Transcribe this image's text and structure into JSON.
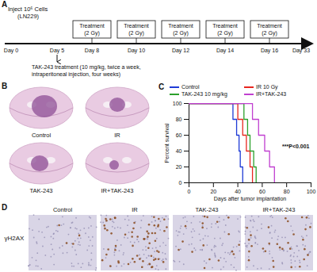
{
  "panel_labels": [
    "A",
    "B",
    "C",
    "D"
  ],
  "timeline": {
    "inject": [
      "Inject 10⁶ Cells",
      "(LN229)"
    ],
    "days": [
      "Day 0",
      "Day 5",
      "Day 8",
      "Day 10",
      "Day 12",
      "Day 14",
      "Day 16",
      "Day 33"
    ],
    "treatments": [
      [
        "Treatment",
        "(2 Gy)"
      ],
      [
        "Treatment",
        "(2 Gy)"
      ],
      [
        "Treatment",
        "(2 Gy)"
      ],
      [
        "Treatment",
        "(2 Gy)"
      ],
      [
        "Treatment",
        "(2 Gy)"
      ]
    ],
    "drug": [
      "TAK-243 treatment (10 mg/kg, twice a week,",
      "intraperitoneal injection, four weeks)"
    ]
  },
  "brain_sections": {
    "labels": [
      "Control",
      "IR",
      "TAK-243",
      "IR+TAK-243"
    ]
  },
  "ihc": {
    "stain": "γH2AX",
    "labels": [
      "Control",
      "IR",
      "TAK-243",
      "IR+TAK-243"
    ]
  },
  "chart_data": {
    "type": "line",
    "xlabel": "Days after tumor implantation",
    "ylabel": "Percent survival",
    "xlim": [
      0,
      100
    ],
    "xticks": [
      0,
      20,
      40,
      60,
      80,
      100
    ],
    "ylim": [
      0,
      100
    ],
    "yticks": [
      0,
      20,
      40,
      60,
      80,
      100
    ],
    "grid": false,
    "legend": "top",
    "line_style": "step",
    "annotations": [
      "***P<0.001"
    ],
    "series": [
      {
        "name": "Control",
        "color": "#1f3bd6",
        "x": [
          0,
          36,
          39,
          41,
          42,
          44
        ],
        "values": [
          100,
          80,
          60,
          40,
          20,
          0
        ]
      },
      {
        "name": "IR 10 Gy",
        "color": "#e8261f",
        "x": [
          0,
          40,
          44,
          47,
          50,
          52
        ],
        "values": [
          100,
          80,
          60,
          40,
          20,
          0
        ]
      },
      {
        "name": "TAK-243 10 mg/kg",
        "color": "#2ca02c",
        "x": [
          0,
          45,
          48,
          50,
          53,
          55
        ],
        "values": [
          100,
          80,
          60,
          40,
          20,
          0
        ]
      },
      {
        "name": "IR+TAK-243",
        "color": "#c03fd0",
        "x": [
          0,
          52,
          57,
          62,
          66,
          70
        ],
        "values": [
          100,
          80,
          60,
          40,
          20,
          0
        ]
      }
    ]
  }
}
